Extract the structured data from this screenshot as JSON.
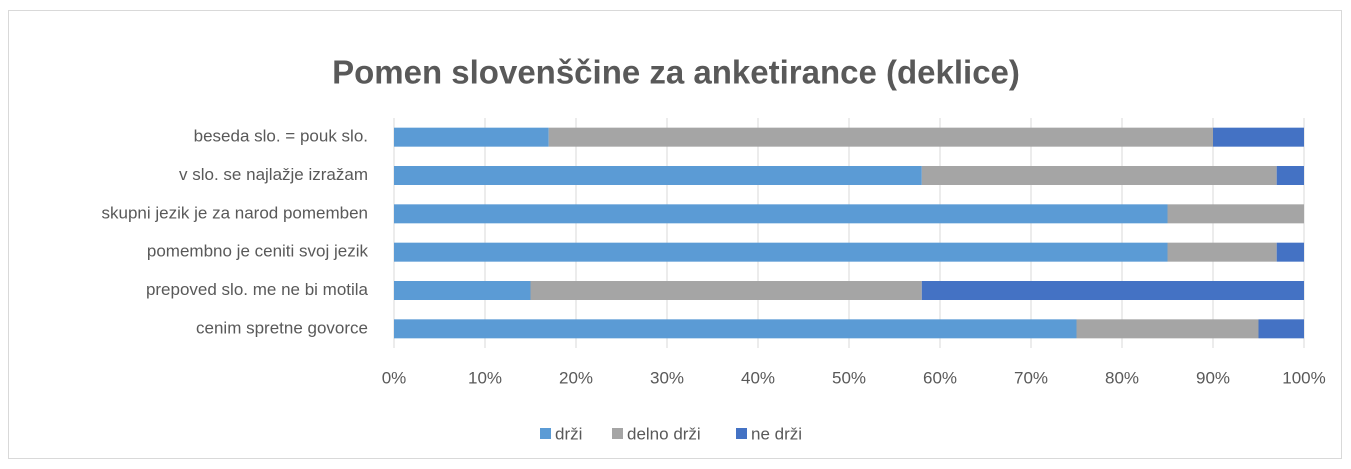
{
  "chart_data": {
    "type": "stacked_barh",
    "title": "Pomen slovenščine za anketirance (deklice)",
    "categories": [
      "beseda slo. = pouk slo.",
      "v slo. se najlažje izražam",
      "skupni jezik je za narod pomemben",
      "pomembno je ceniti svoj jezik",
      "prepoved slo. me ne bi motila",
      "cenim spretne govorce"
    ],
    "series": [
      {
        "name": "drži",
        "color": "#5b9bd5",
        "values": [
          17,
          58,
          85,
          85,
          15,
          75
        ]
      },
      {
        "name": "delno drži",
        "color": "#a5a5a5",
        "values": [
          73,
          39,
          15,
          12,
          43,
          20
        ]
      },
      {
        "name": "ne drži",
        "color": "#4472c4",
        "values": [
          10,
          3,
          0,
          3,
          42,
          5
        ]
      }
    ],
    "xlim": [
      0,
      100
    ],
    "xticks": [
      {
        "value": 0,
        "label": "0%"
      },
      {
        "value": 10,
        "label": "10%"
      },
      {
        "value": 20,
        "label": "20%"
      },
      {
        "value": 30,
        "label": "30%"
      },
      {
        "value": 40,
        "label": "40%"
      },
      {
        "value": 50,
        "label": "50%"
      },
      {
        "value": 60,
        "label": "60%"
      },
      {
        "value": 70,
        "label": "70%"
      },
      {
        "value": 80,
        "label": "80%"
      },
      {
        "value": 90,
        "label": "90%"
      },
      {
        "value": 100,
        "label": "100%"
      }
    ],
    "grid": true,
    "legend": "bottom"
  }
}
